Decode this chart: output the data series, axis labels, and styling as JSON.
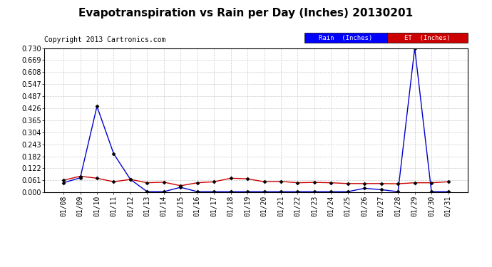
{
  "title": "Evapotranspiration vs Rain per Day (Inches) 20130201",
  "copyright": "Copyright 2013 Cartronics.com",
  "background_color": "#ffffff",
  "grid_color": "#cccccc",
  "x_labels": [
    "01/08",
    "01/09",
    "01/10",
    "01/11",
    "01/12",
    "01/13",
    "01/14",
    "01/15",
    "01/16",
    "01/17",
    "01/18",
    "01/19",
    "01/20",
    "01/21",
    "01/22",
    "01/23",
    "01/24",
    "01/25",
    "01/26",
    "01/27",
    "01/28",
    "01/29",
    "01/30",
    "01/31"
  ],
  "rain_color": "#0000cc",
  "et_color": "#cc0000",
  "rain_values": [
    0.048,
    0.073,
    0.435,
    0.195,
    0.065,
    0.003,
    0.003,
    0.025,
    0.003,
    0.003,
    0.003,
    0.003,
    0.003,
    0.003,
    0.003,
    0.003,
    0.003,
    0.003,
    0.02,
    0.013,
    0.003,
    0.73,
    0.003,
    0.003
  ],
  "et_values": [
    0.061,
    0.081,
    0.071,
    0.053,
    0.065,
    0.048,
    0.051,
    0.033,
    0.048,
    0.053,
    0.071,
    0.068,
    0.053,
    0.055,
    0.048,
    0.05,
    0.048,
    0.044,
    0.044,
    0.044,
    0.043,
    0.048,
    0.048,
    0.053
  ],
  "ylim": [
    0.0,
    0.73
  ],
  "yticks": [
    0.0,
    0.061,
    0.122,
    0.182,
    0.243,
    0.304,
    0.365,
    0.426,
    0.487,
    0.547,
    0.608,
    0.669,
    0.73
  ],
  "legend_rain_label": "Rain  (Inches)",
  "legend_et_label": "ET  (Inches)",
  "legend_rain_bg": "#0000ff",
  "legend_et_bg": "#cc0000",
  "title_fontsize": 11,
  "copyright_fontsize": 7,
  "tick_fontsize": 7,
  "ytick_fontsize": 7
}
